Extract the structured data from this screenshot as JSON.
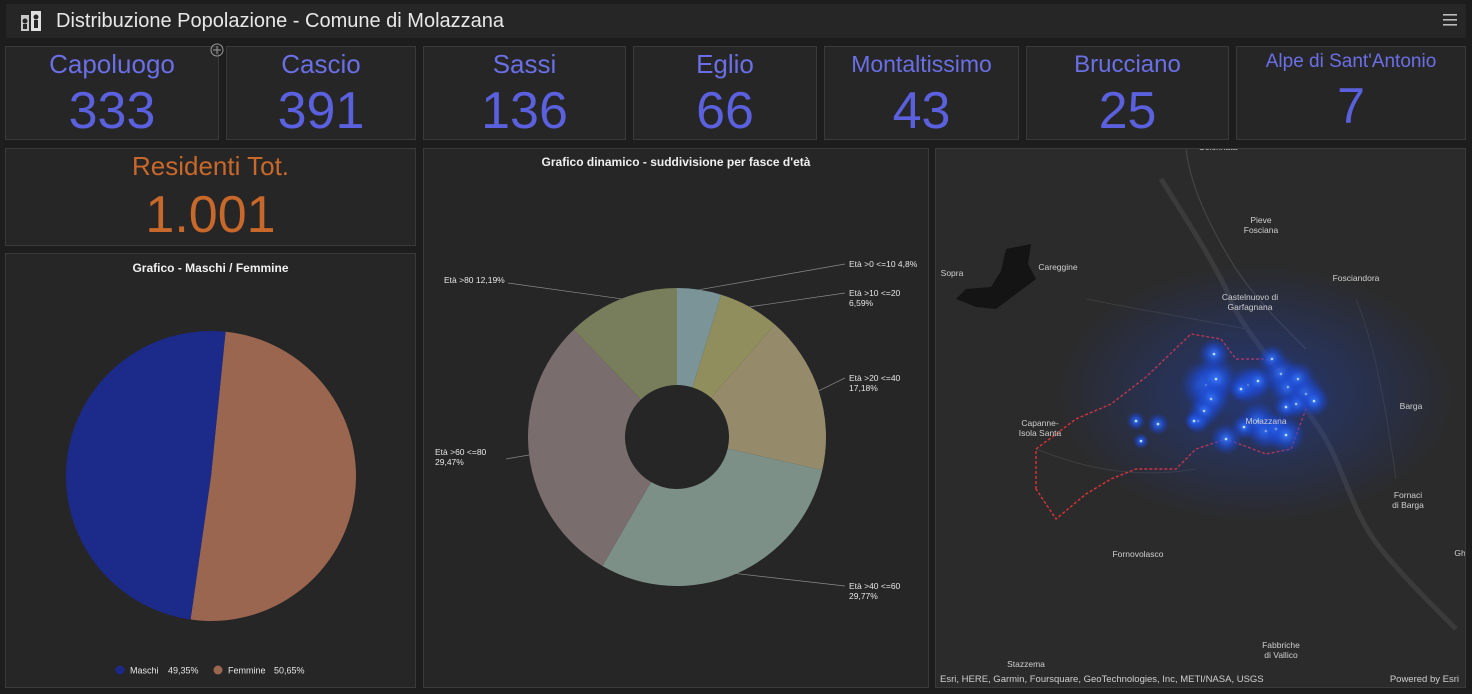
{
  "header": {
    "title": "Distribuzione Popolazione - Comune di Molazzana",
    "logo_icon": "people-icon",
    "menu_icon": "hamburger-menu-icon"
  },
  "cards": [
    {
      "label": "Capoluogo",
      "value": "333"
    },
    {
      "label": "Cascio",
      "value": "391"
    },
    {
      "label": "Sassi",
      "value": "136"
    },
    {
      "label": "Eglio",
      "value": "66"
    },
    {
      "label": "Montaltissimo",
      "value": "43"
    },
    {
      "label": "Brucciano",
      "value": "25"
    },
    {
      "label": "Alpe di Sant'Antonio",
      "value": "7"
    }
  ],
  "total": {
    "label": "Residenti Tot.",
    "value": "1.001",
    "color": "#c8682a"
  },
  "gender_chart": {
    "title": "Grafico - Maschi / Femmine",
    "slices": [
      {
        "name": "Maschi",
        "label": "49,35%",
        "value": 49.35,
        "color": "#1c2a8a"
      },
      {
        "name": "Femmine",
        "label": "50,65%",
        "value": 50.65,
        "color": "#9a6650"
      }
    ]
  },
  "age_chart": {
    "title": "Grafico dinamico - suddivisione per fasce d'età",
    "slices": [
      {
        "name": "Età >0 <=10",
        "label": "4,8%",
        "value": 4.8,
        "color": "#7a9497"
      },
      {
        "name": "Età >10 <=20",
        "label": "6,59%",
        "value": 6.59,
        "color": "#8f8e5c"
      },
      {
        "name": "Età >20 <=40",
        "label": "17,18%",
        "value": 17.18,
        "color": "#958b6b"
      },
      {
        "name": "Età >40 <=60",
        "label": "29,77%",
        "value": 29.77,
        "color": "#7d9087"
      },
      {
        "name": "Età >60 <=80",
        "label": "29,47%",
        "value": 29.47,
        "color": "#7a6d6d"
      },
      {
        "name": "Età >80",
        "label": "12,19%",
        "value": 12.19,
        "color": "#787e5b"
      }
    ]
  },
  "chart_data": [
    {
      "type": "pie",
      "title": "Grafico - Maschi / Femmine",
      "categories": [
        "Maschi",
        "Femmine"
      ],
      "values": [
        49.35,
        50.65
      ],
      "legend": "bottom"
    },
    {
      "type": "pie",
      "title": "Grafico dinamico - suddivisione per fasce d'età",
      "categories": [
        "Età >0 <=10",
        "Età >10 <=20",
        "Età >20 <=40",
        "Età >40 <=60",
        "Età >60 <=80",
        "Età >80"
      ],
      "values": [
        4.8,
        6.59,
        17.18,
        29.77,
        29.47,
        12.19
      ]
    }
  ],
  "map": {
    "places": [
      "Sopra",
      "Careggine",
      "Pieve Fosciana",
      "Fosciandora",
      "Castelnuovo di Garfagnana",
      "Capanne-Isola Santa",
      "Molazzana",
      "Barga",
      "Fornaci di Barga",
      "Fornovolasco",
      "Fabbriche di Vallico",
      "Stazzema",
      "Gh",
      "Colonnata"
    ],
    "attribution": "Esri, HERE, Garmin, Foursquare, GeoTechnologies, Inc, METI/NASA, USGS",
    "powered_by": "Powered by Esri"
  }
}
